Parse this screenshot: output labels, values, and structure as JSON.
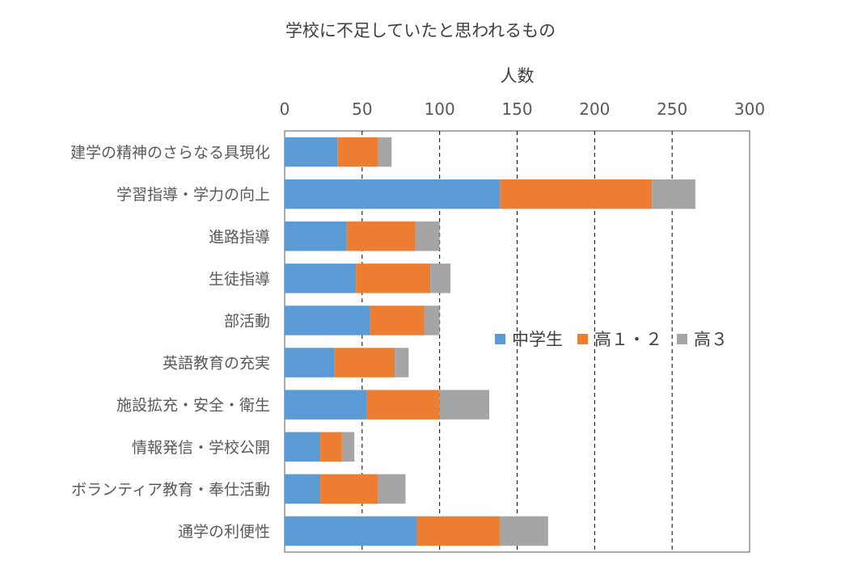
{
  "chart_data": {
    "type": "bar",
    "orientation": "horizontal",
    "stacked": true,
    "title": "学校に不足していたと思われるもの",
    "xlabel": "人数",
    "ylabel": "",
    "xlim": [
      0,
      300
    ],
    "xticks": [
      0,
      50,
      100,
      150,
      200,
      250,
      300
    ],
    "x_axis_position": "top",
    "grid": "vertical dashed",
    "legend_position": "right-middle",
    "categories": [
      "建学の精神のさらなる具現化",
      "学習指導・学力の向上",
      "進路指導",
      "生徒指導",
      "部活動",
      "英語教育の充実",
      "施設拡充・安全・衛生",
      "情報発信・学校公開",
      "ボランティア教育・奉仕活動",
      "通学の利便性"
    ],
    "series": [
      {
        "name": "中学生",
        "color": "#5B9BD5",
        "values": [
          34,
          139,
          40,
          46,
          55,
          32,
          53,
          23,
          23,
          85
        ]
      },
      {
        "name": "高１・２",
        "color": "#ED7D31",
        "values": [
          26,
          98,
          44,
          48,
          35,
          39,
          47,
          14,
          37,
          54
        ]
      },
      {
        "name": "高３",
        "color": "#A5A5A5",
        "values": [
          9,
          28,
          16,
          13,
          10,
          9,
          32,
          8,
          18,
          31
        ]
      }
    ]
  }
}
